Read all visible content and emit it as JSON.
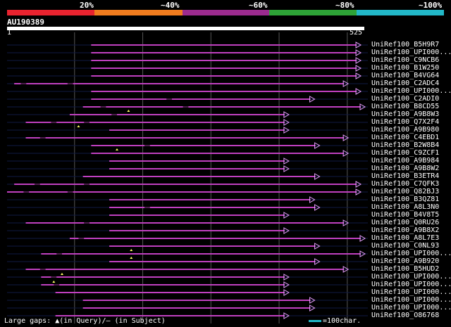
{
  "legend": {
    "percent_labels": [
      "20%",
      "~40%",
      "~60%",
      "~80%",
      "~100%"
    ],
    "band_colors": [
      "#e8232f",
      "#f07c1e",
      "#9b2b8e",
      "#2ea337",
      "#22b8c8"
    ]
  },
  "query": {
    "id": "AU190389",
    "start_label": "1",
    "end_label": "525",
    "length": 525
  },
  "colors": {
    "hit_line": "#c040c0",
    "background_line": "#101a44",
    "grid": "#555555",
    "gap_mark": "#ffff66"
  },
  "hits": [
    {
      "name": "UniRef100_B5H9R7",
      "start": 163,
      "end": 646,
      "ext_start": 10,
      "ext_end": 646,
      "gaps": [],
      "marks": []
    },
    {
      "name": "UniRef100_UPI000...",
      "start": 163,
      "end": 646,
      "ext_start": 10,
      "ext_end": 646,
      "gaps": [],
      "marks": []
    },
    {
      "name": "UniRef100_C9NCB6",
      "start": 163,
      "end": 646,
      "ext_start": 10,
      "ext_end": 646,
      "gaps": [],
      "marks": []
    },
    {
      "name": "UniRef100_B1W250",
      "start": 163,
      "end": 646,
      "ext_start": 10,
      "ext_end": 646,
      "gaps": [],
      "marks": []
    },
    {
      "name": "UniRef100_B4VG64",
      "start": 163,
      "end": 646,
      "ext_start": 10,
      "ext_end": 646,
      "gaps": [],
      "marks": []
    },
    {
      "name": "UniRef100_C2ADC4",
      "start": 23,
      "end": 623,
      "ext_start": 10,
      "ext_end": 646,
      "gaps": [
        [
          35,
          45
        ],
        [
          120,
          130
        ]
      ],
      "marks": []
    },
    {
      "name": "UniRef100_UPI000...",
      "start": 163,
      "end": 646,
      "ext_start": 10,
      "ext_end": 646,
      "gaps": [],
      "marks": []
    },
    {
      "name": "UniRef100_C2ADI0",
      "start": 163,
      "end": 562,
      "ext_start": 10,
      "ext_end": 646,
      "gaps": [
        [
          300,
          310
        ]
      ],
      "marks": []
    },
    {
      "name": "UniRef100_B8CD55",
      "start": 148,
      "end": 673,
      "ext_start": 10,
      "ext_end": 646,
      "gaps": [
        [
          180,
          190
        ],
        [
          330,
          340
        ]
      ],
      "marks": [
        [
          231,
          "below"
        ]
      ]
    },
    {
      "name": "UniRef100_A9B8W3",
      "start": 124,
      "end": 515,
      "ext_start": 10,
      "ext_end": 646,
      "gaps": [
        [
          200,
          210
        ]
      ],
      "marks": []
    },
    {
      "name": "UniRef100_Q7X2F4",
      "start": 44,
      "end": 515,
      "ext_start": 10,
      "ext_end": 646,
      "gaps": [
        [
          90,
          100
        ],
        [
          150,
          160
        ]
      ],
      "marks": [
        [
          140,
          "below"
        ]
      ]
    },
    {
      "name": "UniRef100_A9B980",
      "start": 196,
      "end": 515,
      "ext_start": 10,
      "ext_end": 646,
      "gaps": [],
      "marks": []
    },
    {
      "name": "UniRef100_C4EBD1",
      "start": 44,
      "end": 623,
      "ext_start": 10,
      "ext_end": 646,
      "gaps": [
        [
          70,
          80
        ]
      ],
      "marks": []
    },
    {
      "name": "UniRef100_B2W8B4",
      "start": 163,
      "end": 571,
      "ext_start": 10,
      "ext_end": 646,
      "gaps": [
        [
          260,
          270
        ]
      ],
      "marks": [
        [
          210,
          "below"
        ]
      ]
    },
    {
      "name": "UniRef100_C9ZCF1",
      "start": 163,
      "end": 623,
      "ext_start": 10,
      "ext_end": 646,
      "gaps": [],
      "marks": []
    },
    {
      "name": "UniRef100_A9B984",
      "start": 196,
      "end": 515,
      "ext_start": 10,
      "ext_end": 646,
      "gaps": [],
      "marks": []
    },
    {
      "name": "UniRef100_A9B8W2",
      "start": 196,
      "end": 515,
      "ext_start": 10,
      "ext_end": 646,
      "gaps": [],
      "marks": []
    },
    {
      "name": "UniRef100_B3ETR4",
      "start": 148,
      "end": 571,
      "ext_start": 10,
      "ext_end": 646,
      "gaps": [],
      "marks": []
    },
    {
      "name": "UniRef100_C7QFK3",
      "start": 23,
      "end": 646,
      "ext_start": 10,
      "ext_end": 646,
      "gaps": [
        [
          60,
          70
        ],
        [
          150,
          160
        ]
      ],
      "marks": []
    },
    {
      "name": "UniRef100_Q82BJ3",
      "start": 10,
      "end": 646,
      "ext_start": 10,
      "ext_end": 646,
      "gaps": [
        [
          40,
          50
        ],
        [
          120,
          130
        ]
      ],
      "marks": []
    },
    {
      "name": "UniRef100_B3QZ81",
      "start": 196,
      "end": 562,
      "ext_start": 10,
      "ext_end": 646,
      "gaps": [],
      "marks": []
    },
    {
      "name": "UniRef100_A8L3N0",
      "start": 196,
      "end": 571,
      "ext_start": 10,
      "ext_end": 646,
      "gaps": [
        [
          260,
          270
        ]
      ],
      "marks": []
    },
    {
      "name": "UniRef100_B4V8T5",
      "start": 196,
      "end": 515,
      "ext_start": 10,
      "ext_end": 646,
      "gaps": [],
      "marks": []
    },
    {
      "name": "UniRef100_Q0RU26",
      "start": 44,
      "end": 623,
      "ext_start": 10,
      "ext_end": 646,
      "gaps": [
        [
          150,
          160
        ]
      ],
      "marks": []
    },
    {
      "name": "UniRef100_A9B8X2",
      "start": 196,
      "end": 515,
      "ext_start": 10,
      "ext_end": 646,
      "gaps": [],
      "marks": []
    },
    {
      "name": "UniRef100_A8L7E3",
      "start": 124,
      "end": 683,
      "ext_start": 10,
      "ext_end": 646,
      "gaps": [
        [
          140,
          150
        ]
      ],
      "marks": []
    },
    {
      "name": "UniRef100_C0NL93",
      "start": 196,
      "end": 571,
      "ext_start": 10,
      "ext_end": 646,
      "gaps": [],
      "marks": [
        [
          236,
          "below"
        ]
      ]
    },
    {
      "name": "UniRef100_UPI000...",
      "start": 72,
      "end": 673,
      "ext_start": 10,
      "ext_end": 646,
      "gaps": [
        [
          100,
          110
        ]
      ],
      "marks": [
        [
          236,
          "below"
        ]
      ]
    },
    {
      "name": "UniRef100_A9B920",
      "start": 196,
      "end": 571,
      "ext_start": 10,
      "ext_end": 646,
      "gaps": [],
      "marks": []
    },
    {
      "name": "UniRef100_B5HUD2",
      "start": 44,
      "end": 623,
      "ext_start": 10,
      "ext_end": 646,
      "gaps": [
        [
          70,
          80
        ]
      ],
      "marks": []
    },
    {
      "name": "UniRef100_UPI000...",
      "start": 72,
      "end": 515,
      "ext_start": 10,
      "ext_end": 646,
      "gaps": [
        [
          90,
          100
        ]
      ],
      "marks": [
        [
          110,
          "above"
        ]
      ]
    },
    {
      "name": "UniRef100_UPI000...",
      "start": 72,
      "end": 515,
      "ext_start": 10,
      "ext_end": 646,
      "gaps": [
        [
          95,
          105
        ]
      ],
      "marks": [
        [
          95,
          "above"
        ]
      ]
    },
    {
      "name": "UniRef100_UPI000...",
      "start": 98,
      "end": 515,
      "ext_start": 10,
      "ext_end": 646,
      "gaps": [],
      "marks": []
    },
    {
      "name": "UniRef100_UPI000...",
      "start": 148,
      "end": 562,
      "ext_start": 10,
      "ext_end": 646,
      "gaps": [],
      "marks": []
    },
    {
      "name": "UniRef100_UPI000...",
      "start": 148,
      "end": 562,
      "ext_start": 10,
      "ext_end": 646,
      "gaps": [],
      "marks": []
    },
    {
      "name": "UniRef100_O86768",
      "start": 98,
      "end": 515,
      "ext_start": 10,
      "ext_end": 646,
      "gaps": [],
      "marks": []
    }
  ],
  "footer": {
    "text": "Large gaps: ▲(in Query)/– (in Subject)",
    "scale_text": "=100char."
  }
}
